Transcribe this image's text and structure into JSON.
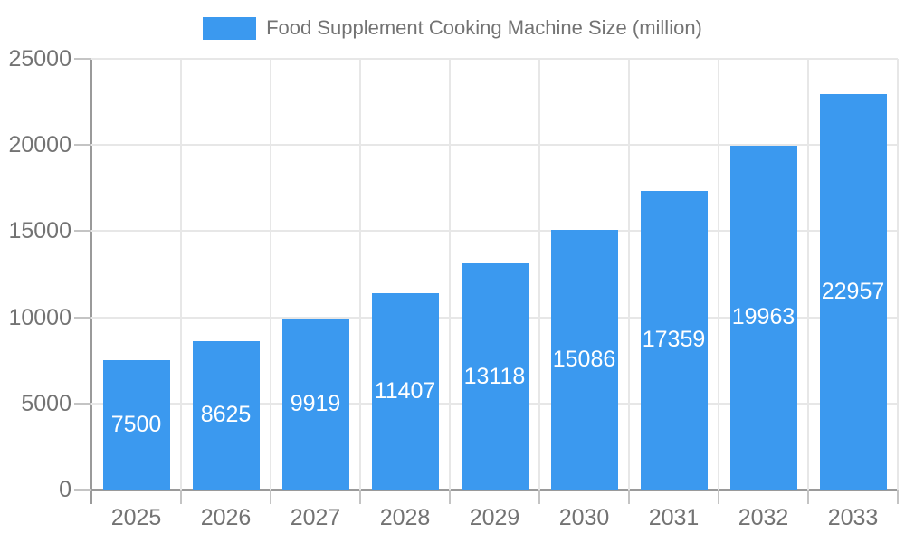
{
  "chart_data": {
    "type": "bar",
    "title": "Food Supplement Cooking Machine Size (million)",
    "legend_position": "top",
    "categories": [
      "2025",
      "2026",
      "2027",
      "2028",
      "2029",
      "2030",
      "2031",
      "2032",
      "2033"
    ],
    "values": [
      7500,
      8625,
      9919,
      11407,
      13118,
      15086,
      17359,
      19963,
      22957
    ],
    "xlabel": "",
    "ylabel": "",
    "ylim": [
      0,
      25000
    ],
    "yticks": [
      0,
      5000,
      10000,
      15000,
      20000,
      25000
    ],
    "grid": true,
    "bar_labels_visible": true,
    "colors": {
      "bar": "#3B99EF",
      "bar_label": "#FFFFFF",
      "axis_text": "#737373",
      "grid_line": "#E7E7E7",
      "tick_mark": "#C4C4C4",
      "axis_line": "#9A9A9A",
      "background": "#FFFFFF"
    }
  }
}
